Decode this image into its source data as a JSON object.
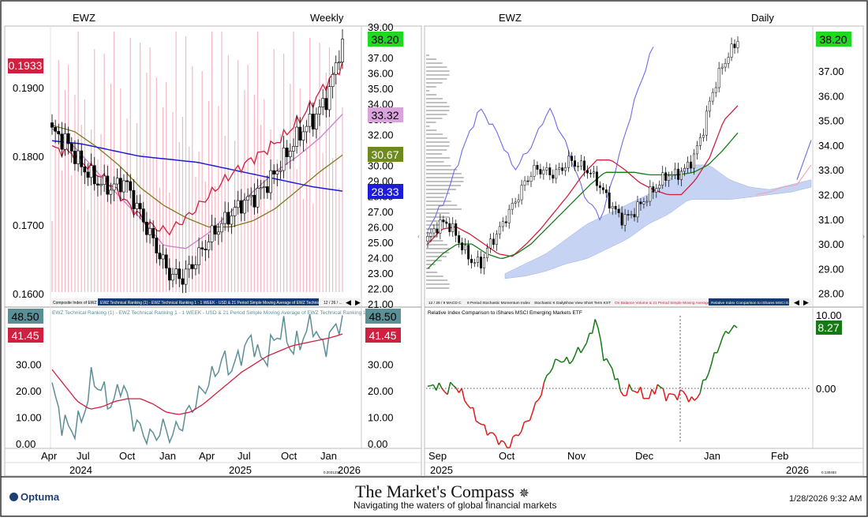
{
  "colors": {
    "price_box_green": "#1fd81f",
    "red_label": "#d0203f",
    "pink_label": "#d9a3dc",
    "olive_label": "#6e8a1e",
    "blue_label": "#1b1bd8",
    "teal_label": "#5b8f96",
    "dark_green_label": "#157a15"
  },
  "left_panel": {
    "symbol": "EWZ",
    "timeframe": "Weekly",
    "price_axis": [
      "39.00",
      "38.00",
      "37.00",
      "36.00",
      "35.00",
      "34.00",
      "33.00",
      "32.00",
      "31.00",
      "30.00",
      "29.00",
      "28.00",
      "27.00",
      "26.00",
      "25.00",
      "24.00",
      "23.00",
      "22.00",
      "21.00"
    ],
    "ratio_axis": [
      "0.1900",
      "0.1800",
      "0.1700",
      "0.1600"
    ],
    "ratio_label": "0.1933",
    "price_label": "38.20",
    "ma_labels": [
      "33.32",
      "30.67",
      "28.33"
    ],
    "tab_bar": [
      "Composite Index of EWZ",
      "EWZ Technical Ranking (1) - EWZ Technical Ranking 1 - 1 WEEK - USD & 21 Period Simple Moving Average of EWZ Technical Ranking 1",
      "12 / 26 / ..."
    ],
    "lower_legend": "EWZ Technical Ranking (1) - EWZ Technical Ranking 1 - 1 WEEK - USD & 21 Period Simple Moving Average of EWZ Technical Ranking 1",
    "lower_axis": [
      "30.00",
      "20.00",
      "10.00",
      "0.00"
    ],
    "lower_value_labels": [
      "48.50",
      "41.45"
    ],
    "x_months": [
      "Apr",
      "Jul",
      "Oct",
      "Jan",
      "Apr",
      "Jul",
      "Oct",
      "Jan"
    ],
    "x_years": [
      "2024",
      "2025",
      "2026"
    ],
    "scale_note": "0.2031232"
  },
  "right_panel": {
    "symbol": "EWZ",
    "timeframe": "Daily",
    "price_axis": [
      "37.00",
      "36.00",
      "35.00",
      "34.00",
      "33.00",
      "32.00",
      "31.00",
      "30.00",
      "29.00",
      "28.00"
    ],
    "price_label": "38.20",
    "tab_bar": [
      "12 / 26 / 9 MACD C",
      "8 Period Stochastic Momentum Index",
      "Stochastic K Daily",
      "Show View Short Term KST",
      "On Balance Volume & 21 Period Simple Moving Average",
      "Relative Index Comparison to iShares MSCI E..."
    ],
    "lower_legend": "Relative Index Comparison to iShares MSCI Emerging Markets ETF",
    "lower_axis": [
      "10.00",
      "0.00"
    ],
    "lower_value_label": "8.27",
    "x_months": [
      "Sep",
      "Oct",
      "Nov",
      "Dec",
      "Jan",
      "Feb"
    ],
    "x_years": [
      "2025",
      "2026"
    ],
    "scale_note": "0.130453"
  },
  "footer": {
    "brand": "Optuma",
    "title": "The Market's Compass",
    "subtitle": "Navigating the waters of global financial markets",
    "datetime": "1/28/2026 9:32 AM"
  },
  "chart_data": [
    {
      "type": "line",
      "title": "EWZ Weekly",
      "ylim": [
        21,
        39
      ],
      "x": [
        "2024-04",
        "2024-07",
        "2024-10",
        "2025-01",
        "2025-04",
        "2025-07",
        "2025-10",
        "2026-01"
      ],
      "series": [
        {
          "values": [
            32.0,
            30.5,
            28.5,
            22.5,
            25.5,
            29.5,
            32.0,
            38.2
          ]
        }
      ],
      "annotations": [
        "38.20",
        "33.32",
        "30.67",
        "28.33",
        "0.1933"
      ]
    },
    {
      "type": "line",
      "title": "EWZ Technical Ranking (1) - EWZ Technical Ranking 1 - 1 WEEK - USD & 21 Period Simple Moving Average of EWZ Technical Ranking 1",
      "ylim": [
        0,
        50
      ],
      "x": [
        "2024-04",
        "2024-07",
        "2024-10",
        "2025-01",
        "2025-04",
        "2025-07",
        "2025-10",
        "2026-01"
      ],
      "series": [
        {
          "values": [
            21,
            9,
            24,
            2,
            15,
            35,
            45,
            48.5
          ]
        },
        {
          "values": [
            28,
            13,
            17,
            12,
            22,
            32,
            38,
            41.45
          ]
        }
      ]
    },
    {
      "type": "line",
      "title": "EWZ Daily",
      "ylim": [
        27.6,
        38.6
      ],
      "x": [
        "2025-09",
        "2025-10",
        "2025-11",
        "2025-12",
        "2026-01"
      ],
      "series": [
        {
          "values": [
            30.2,
            29.5,
            32.8,
            32.5,
            38.2
          ]
        }
      ],
      "annotations": [
        "38.20"
      ]
    },
    {
      "type": "line",
      "title": "Relative Index Comparison to iShares MSCI Emerging Markets ETF",
      "ylim": [
        -3,
        10
      ],
      "x": [
        "2025-09",
        "2025-10",
        "2025-11",
        "2025-12",
        "2026-01"
      ],
      "series": [
        {
          "values": [
            0,
            -8,
            4,
            -1,
            8.27
          ]
        }
      ]
    }
  ]
}
